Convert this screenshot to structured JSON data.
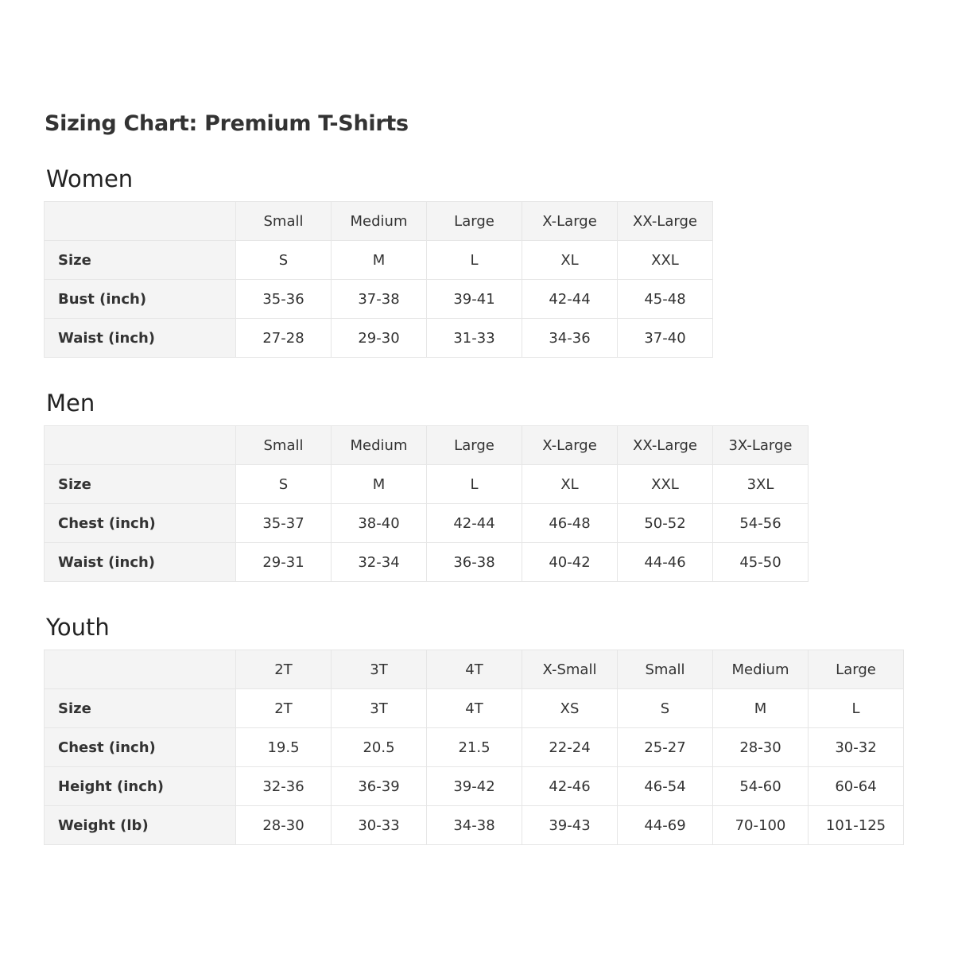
{
  "title": "Sizing Chart: Premium T-Shirts",
  "colors": {
    "header_bg": "#f4f4f4",
    "border": "#e6e6e6",
    "text": "#333333"
  },
  "sections": [
    {
      "name": "Women",
      "columns": [
        "Small",
        "Medium",
        "Large",
        "X-Large",
        "XX-Large"
      ],
      "rows": [
        {
          "label": "Size",
          "values": [
            "S",
            "M",
            "L",
            "XL",
            "XXL"
          ]
        },
        {
          "label": "Bust (inch)",
          "values": [
            "35-36",
            "37-38",
            "39-41",
            "42-44",
            "45-48"
          ]
        },
        {
          "label": "Waist (inch)",
          "values": [
            "27-28",
            "29-30",
            "31-33",
            "34-36",
            "37-40"
          ]
        }
      ]
    },
    {
      "name": "Men",
      "columns": [
        "Small",
        "Medium",
        "Large",
        "X-Large",
        "XX-Large",
        "3X-Large"
      ],
      "rows": [
        {
          "label": "Size",
          "values": [
            "S",
            "M",
            "L",
            "XL",
            "XXL",
            "3XL"
          ]
        },
        {
          "label": "Chest (inch)",
          "values": [
            "35-37",
            "38-40",
            "42-44",
            "46-48",
            "50-52",
            "54-56"
          ]
        },
        {
          "label": "Waist (inch)",
          "values": [
            "29-31",
            "32-34",
            "36-38",
            "40-42",
            "44-46",
            "45-50"
          ]
        }
      ]
    },
    {
      "name": "Youth",
      "columns": [
        "2T",
        "3T",
        "4T",
        "X-Small",
        "Small",
        "Medium",
        "Large"
      ],
      "rows": [
        {
          "label": "Size",
          "values": [
            "2T",
            "3T",
            "4T",
            "XS",
            "S",
            "M",
            "L"
          ]
        },
        {
          "label": "Chest (inch)",
          "values": [
            "19.5",
            "20.5",
            "21.5",
            "22-24",
            "25-27",
            "28-30",
            "30-32"
          ]
        },
        {
          "label": "Height (inch)",
          "values": [
            "32-36",
            "36-39",
            "39-42",
            "42-46",
            "46-54",
            "54-60",
            "60-64"
          ]
        },
        {
          "label": "Weight (lb)",
          "values": [
            "28-30",
            "30-33",
            "34-38",
            "39-43",
            "44-69",
            "70-100",
            "101-125"
          ]
        }
      ]
    }
  ]
}
